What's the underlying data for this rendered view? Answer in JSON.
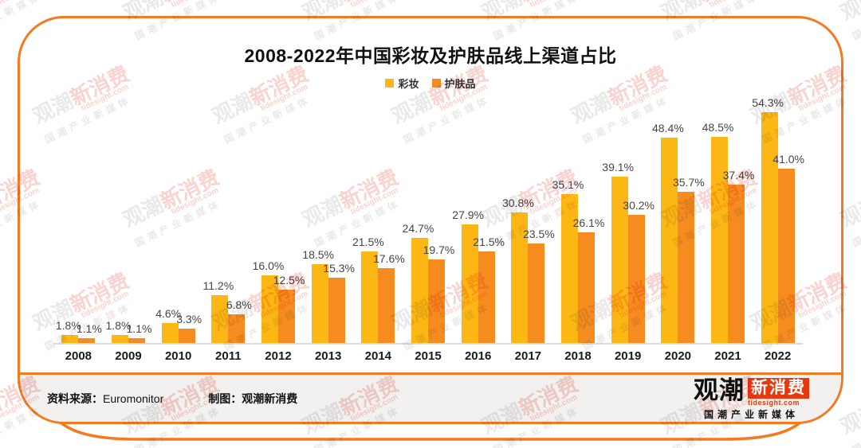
{
  "chart_data": {
    "type": "bar",
    "title": "2008-2022年中国彩妆及护肤品线上渠道占比",
    "categories": [
      "2008",
      "2009",
      "2010",
      "2011",
      "2012",
      "2013",
      "2014",
      "2015",
      "2016",
      "2017",
      "2018",
      "2019",
      "2020",
      "2021",
      "2022"
    ],
    "series": [
      {
        "name": "彩妆",
        "color": "#FDB714",
        "values": [
          1.8,
          1.8,
          4.6,
          11.2,
          16.0,
          18.5,
          21.5,
          24.7,
          27.9,
          30.8,
          35.1,
          39.1,
          48.4,
          48.5,
          54.3
        ]
      },
      {
        "name": "护肤品",
        "color": "#F68B1F",
        "values": [
          1.1,
          1.1,
          3.3,
          6.8,
          12.5,
          15.3,
          17.6,
          19.7,
          21.5,
          23.5,
          26.1,
          30.2,
          35.7,
          37.4,
          41.0
        ]
      }
    ],
    "value_suffix": "%",
    "ylim": [
      0,
      57
    ],
    "grid": false,
    "legend_position": "top",
    "xlabel": "",
    "ylabel": ""
  },
  "footer": {
    "source_label": "资料来源：",
    "source_value": "Euromonitor",
    "credit_label": "制图：",
    "credit_value": "观潮新消费"
  },
  "logo": {
    "brand_black": "观潮",
    "brand_red": "新消费",
    "domain": "tidesight.com",
    "tagline": "国潮产业新媒体"
  },
  "watermark": {
    "brand_gray": "观潮",
    "brand_red": "新消费",
    "domain": "tidesight.com",
    "tagline": "国潮产业新媒体"
  },
  "colors": {
    "card_border": "#F4791F",
    "footer_bg": "#F2F1EF",
    "axis_line": "#DCDCDC",
    "logo_red": "#E8380D"
  }
}
